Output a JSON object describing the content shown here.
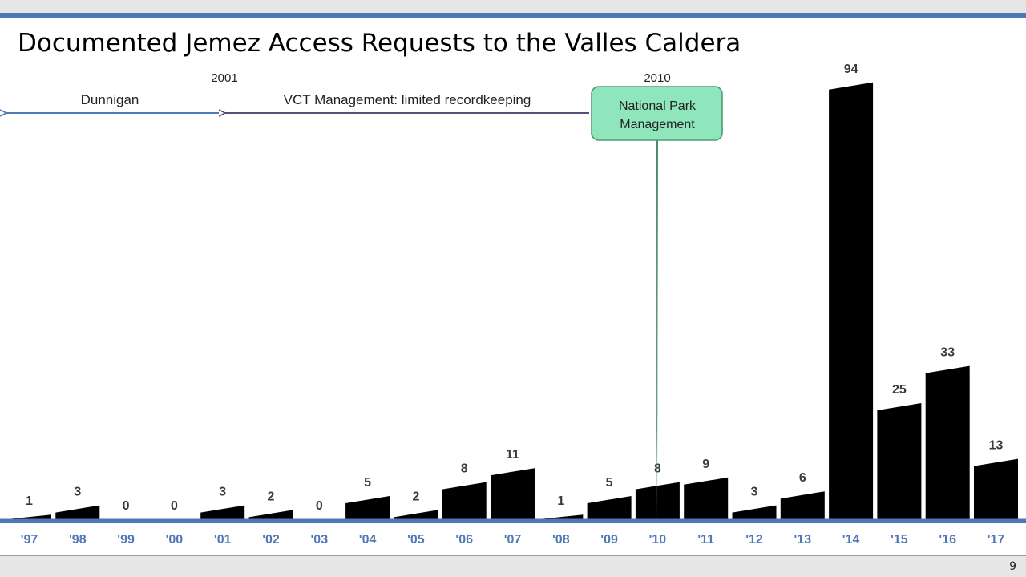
{
  "slide": {
    "title": "Documented Jemez Access Requests to the Valles Caldera",
    "page_number": "9"
  },
  "annotations": {
    "year_2001": "2001",
    "year_2010": "2010",
    "dunnigan": "Dunnigan",
    "vct": "VCT Management: limited recordkeeping",
    "nps_line1": "National Park",
    "nps_line2": "Management"
  },
  "colors": {
    "bar": "#000000",
    "axis": "#4f79b4",
    "tick_label": "#4f79b4",
    "dunnigan_arrow": "#4f79b4",
    "vct_arrow": "#5d4b7a",
    "nps_box_fill": "#8fe6bd",
    "nps_box_stroke": "#4c9d74",
    "nps_line": "#4c8a68"
  },
  "chart_data": {
    "type": "bar",
    "title": "Documented Jemez Access Requests to the Valles Caldera",
    "categories": [
      "'97",
      "'98",
      "'99",
      "'00",
      "'01",
      "'02",
      "'03",
      "'04",
      "'05",
      "'06",
      "'07",
      "'08",
      "'09",
      "'10",
      "'11",
      "'12",
      "'13",
      "'14",
      "'15",
      "'16",
      "'17"
    ],
    "values": [
      1,
      3,
      0,
      0,
      3,
      2,
      0,
      5,
      2,
      8,
      11,
      1,
      5,
      8,
      9,
      3,
      6,
      94,
      25,
      33,
      13
    ],
    "data_labels": [
      "1",
      "3",
      "0",
      "0",
      "3",
      "2",
      "0",
      "5",
      "2",
      "8",
      "11",
      "1",
      "5",
      "8",
      "9",
      "3",
      "6",
      "94",
      "25",
      "33",
      "13"
    ],
    "xlabel": "",
    "ylabel": "",
    "ylim": [
      0,
      100
    ],
    "grid": false,
    "legend": "none"
  }
}
